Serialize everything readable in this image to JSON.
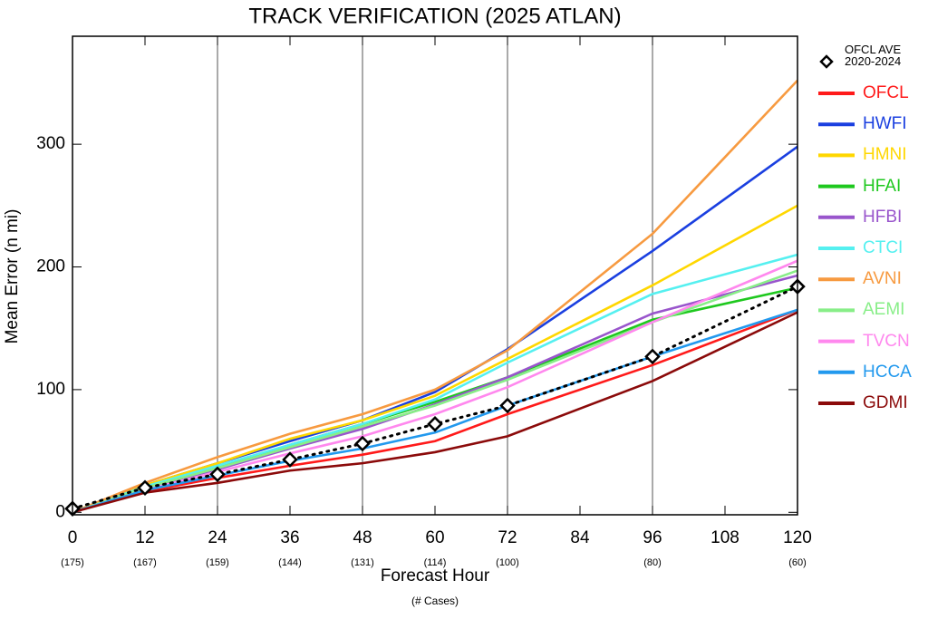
{
  "chart_data": {
    "type": "line",
    "title": "TRACK VERIFICATION (2025 ATLAN)",
    "xlabel": "Forecast Hour",
    "xsublabel": "(# Cases)",
    "ylabel": "Mean Error (n mi)",
    "xlim": [
      0,
      120
    ],
    "xticks": [
      0,
      12,
      24,
      36,
      48,
      60,
      72,
      84,
      96,
      108,
      120
    ],
    "ylim": [
      -2,
      388
    ],
    "yticks": [
      0,
      100,
      200,
      300
    ],
    "vgrid": [
      24,
      48,
      72,
      96
    ],
    "x": [
      0,
      12,
      24,
      36,
      48,
      60,
      72,
      96,
      120
    ],
    "case_labels": [
      "(175)",
      "(167)",
      "(159)",
      "(144)",
      "(131)",
      "(114)",
      "(100)",
      "(80)",
      "(60)"
    ],
    "legend": "outside-right",
    "series": [
      {
        "name": "OFCL AVE\n2020-2024",
        "color": "#000000",
        "style": "dotted",
        "marker": "diamond",
        "values": [
          3,
          20,
          31,
          43,
          56,
          72,
          87,
          127,
          184
        ]
      },
      {
        "name": "OFCL",
        "color": "#ff1a1a",
        "values": [
          0,
          17,
          28,
          38,
          47,
          58,
          80,
          120,
          165
        ]
      },
      {
        "name": "HWFI",
        "color": "#1a3fe0",
        "values": [
          0,
          22,
          40,
          58,
          75,
          98,
          133,
          213,
          298
        ]
      },
      {
        "name": "HMNI",
        "color": "#ffd700",
        "values": [
          0,
          22,
          40,
          60,
          75,
          95,
          125,
          185,
          250
        ]
      },
      {
        "name": "HFAI",
        "color": "#1ec81e",
        "values": [
          0,
          20,
          37,
          55,
          72,
          90,
          110,
          157,
          183
        ]
      },
      {
        "name": "HFBI",
        "color": "#9955cc",
        "values": [
          0,
          20,
          35,
          52,
          68,
          88,
          110,
          162,
          193
        ]
      },
      {
        "name": "CTCI",
        "color": "#55f0f0",
        "values": [
          0,
          21,
          38,
          55,
          72,
          92,
          122,
          178,
          210
        ]
      },
      {
        "name": "AVNI",
        "color": "#f79a40",
        "values": [
          0,
          24,
          45,
          64,
          80,
          100,
          132,
          227,
          352
        ]
      },
      {
        "name": "AEMI",
        "color": "#88ee88",
        "values": [
          0,
          20,
          36,
          53,
          70,
          87,
          108,
          155,
          197
        ]
      },
      {
        "name": "TVCN",
        "color": "#ff88ee",
        "values": [
          0,
          18,
          33,
          48,
          62,
          80,
          102,
          155,
          205
        ]
      },
      {
        "name": "HCCA",
        "color": "#2299ee",
        "values": [
          0,
          18,
          30,
          42,
          52,
          65,
          87,
          127,
          165
        ]
      },
      {
        "name": "GDMI",
        "color": "#8b0a0a",
        "values": [
          0,
          16,
          24,
          34,
          40,
          49,
          62,
          107,
          163
        ]
      }
    ]
  }
}
